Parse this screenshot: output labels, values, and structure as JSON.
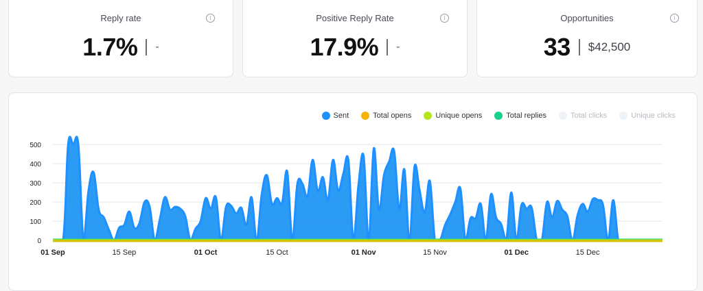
{
  "stats": [
    {
      "title": "Reply rate",
      "value": "1.7%",
      "sub": "-"
    },
    {
      "title": "Positive Reply Rate",
      "value": "17.9%",
      "sub": "-"
    },
    {
      "title": "Opportunities",
      "value": "33",
      "sub": "$42,500"
    }
  ],
  "info_icon_glyph": "i",
  "legend": [
    {
      "label": "Sent",
      "color": "#1e90ff",
      "active": true
    },
    {
      "label": "Total opens",
      "color": "#f5b400",
      "active": true
    },
    {
      "label": "Unique opens",
      "color": "#b5e61d",
      "active": true
    },
    {
      "label": "Total replies",
      "color": "#1ad18b",
      "active": true
    },
    {
      "label": "Total clicks",
      "color": "#eef3f8",
      "active": false
    },
    {
      "label": "Unique clicks",
      "color": "#eef3f8",
      "active": false
    }
  ],
  "chart_data": {
    "type": "area",
    "title": "",
    "xlabel": "",
    "ylabel": "",
    "ylim": [
      0,
      500
    ],
    "yticks": [
      0,
      100,
      200,
      300,
      400,
      500
    ],
    "grid": true,
    "legend_position": "top-right",
    "x_range_days": [
      0,
      120
    ],
    "x_ticks": [
      {
        "day": 0,
        "label": "01 Sep",
        "bold": true
      },
      {
        "day": 14,
        "label": "15 Sep",
        "bold": false
      },
      {
        "day": 30,
        "label": "01 Oct",
        "bold": true
      },
      {
        "day": 44,
        "label": "15 Oct",
        "bold": false
      },
      {
        "day": 61,
        "label": "01 Nov",
        "bold": true
      },
      {
        "day": 75,
        "label": "15 Nov",
        "bold": false
      },
      {
        "day": 91,
        "label": "01 Dec",
        "bold": true
      },
      {
        "day": 105,
        "label": "15 Dec",
        "bold": false
      }
    ],
    "series": [
      {
        "name": "Sent",
        "color": "#1e90ff",
        "fill": "#2196f3",
        "points": [
          [
            0,
            0
          ],
          [
            2,
            0
          ],
          [
            3,
            500
          ],
          [
            4,
            500
          ],
          [
            5,
            500
          ],
          [
            6,
            0
          ],
          [
            7,
            260
          ],
          [
            8,
            355
          ],
          [
            9,
            160
          ],
          [
            10,
            120
          ],
          [
            11,
            55
          ],
          [
            12,
            0
          ],
          [
            13,
            65
          ],
          [
            14,
            80
          ],
          [
            15,
            150
          ],
          [
            16,
            65
          ],
          [
            17,
            90
          ],
          [
            18,
            200
          ],
          [
            19,
            175
          ],
          [
            20,
            0
          ],
          [
            21,
            110
          ],
          [
            22,
            225
          ],
          [
            23,
            160
          ],
          [
            24,
            175
          ],
          [
            25,
            165
          ],
          [
            26,
            125
          ],
          [
            27,
            0
          ],
          [
            28,
            60
          ],
          [
            29,
            100
          ],
          [
            30,
            220
          ],
          [
            31,
            165
          ],
          [
            32,
            225
          ],
          [
            33,
            0
          ],
          [
            34,
            175
          ],
          [
            35,
            180
          ],
          [
            36,
            140
          ],
          [
            37,
            170
          ],
          [
            38,
            80
          ],
          [
            39,
            225
          ],
          [
            40,
            0
          ],
          [
            41,
            240
          ],
          [
            42,
            340
          ],
          [
            43,
            190
          ],
          [
            44,
            220
          ],
          [
            45,
            195
          ],
          [
            46,
            360
          ],
          [
            47,
            0
          ],
          [
            48,
            295
          ],
          [
            49,
            295
          ],
          [
            50,
            230
          ],
          [
            51,
            420
          ],
          [
            52,
            255
          ],
          [
            53,
            330
          ],
          [
            54,
            210
          ],
          [
            55,
            420
          ],
          [
            56,
            260
          ],
          [
            57,
            345
          ],
          [
            58,
            420
          ],
          [
            59,
            0
          ],
          [
            60,
            290
          ],
          [
            61,
            440
          ],
          [
            62,
            0
          ],
          [
            63,
            480
          ],
          [
            64,
            160
          ],
          [
            65,
            340
          ],
          [
            66,
            410
          ],
          [
            67,
            465
          ],
          [
            68,
            160
          ],
          [
            69,
            370
          ],
          [
            70,
            0
          ],
          [
            71,
            385
          ],
          [
            72,
            260
          ],
          [
            73,
            145
          ],
          [
            74,
            310
          ],
          [
            75,
            0
          ],
          [
            76,
            0
          ],
          [
            77,
            80
          ],
          [
            78,
            135
          ],
          [
            79,
            200
          ],
          [
            80,
            270
          ],
          [
            81,
            0
          ],
          [
            82,
            115
          ],
          [
            83,
            115
          ],
          [
            84,
            190
          ],
          [
            85,
            0
          ],
          [
            86,
            240
          ],
          [
            87,
            120
          ],
          [
            88,
            85
          ],
          [
            89,
            0
          ],
          [
            90,
            250
          ],
          [
            91,
            0
          ],
          [
            92,
            185
          ],
          [
            93,
            165
          ],
          [
            94,
            170
          ],
          [
            95,
            0
          ],
          [
            96,
            0
          ],
          [
            97,
            200
          ],
          [
            98,
            120
          ],
          [
            99,
            205
          ],
          [
            100,
            160
          ],
          [
            101,
            125
          ],
          [
            102,
            0
          ],
          [
            103,
            130
          ],
          [
            104,
            190
          ],
          [
            105,
            150
          ],
          [
            106,
            215
          ],
          [
            107,
            210
          ],
          [
            108,
            185
          ],
          [
            109,
            0
          ],
          [
            110,
            210
          ],
          [
            111,
            0
          ],
          [
            112,
            0
          ]
        ]
      },
      {
        "name": "Total opens",
        "color": "#f5b400",
        "baseline": 0
      },
      {
        "name": "Unique opens",
        "color": "#b5e61d",
        "baseline": 0
      },
      {
        "name": "Total replies",
        "color": "#1ad18b",
        "baseline": 0
      }
    ]
  }
}
